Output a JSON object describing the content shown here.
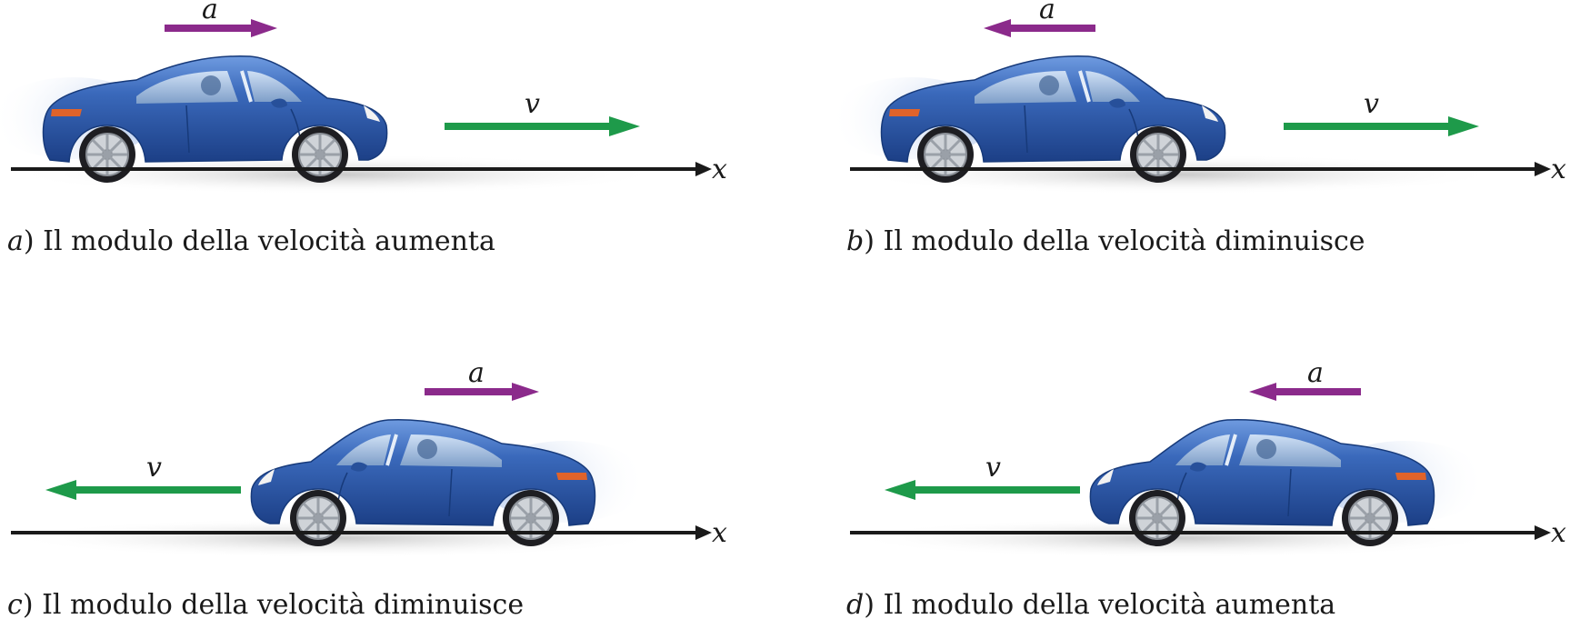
{
  "panels": [
    {
      "id": "a",
      "letter": "a",
      "paren": ")",
      "caption": "Il modulo della velocità aumenta",
      "a_label": "a",
      "v_label": "v",
      "axis_label": "x",
      "car_direction": "right",
      "a_direction": "right",
      "v_direction": "right"
    },
    {
      "id": "b",
      "letter": "b",
      "paren": ")",
      "caption": "Il modulo della velocità diminuisce",
      "a_label": "a",
      "v_label": "v",
      "axis_label": "x",
      "car_direction": "right",
      "a_direction": "left",
      "v_direction": "right"
    },
    {
      "id": "c",
      "letter": "c",
      "paren": ")",
      "caption": "Il modulo della velocità diminuisce",
      "a_label": "a",
      "v_label": "v",
      "axis_label": "x",
      "car_direction": "left",
      "a_direction": "right",
      "v_direction": "left"
    },
    {
      "id": "d",
      "letter": "d",
      "paren": ")",
      "caption": "Il modulo della velocità aumenta",
      "a_label": "a",
      "v_label": "v",
      "axis_label": "x",
      "car_direction": "left",
      "a_direction": "left",
      "v_direction": "left"
    }
  ],
  "colors": {
    "acceleration": "#8b2a8b",
    "velocity": "#1e9a4a",
    "car_body": "#2f5fae",
    "axis": "#1a1a1a",
    "shadow": "#d9d9d9"
  }
}
